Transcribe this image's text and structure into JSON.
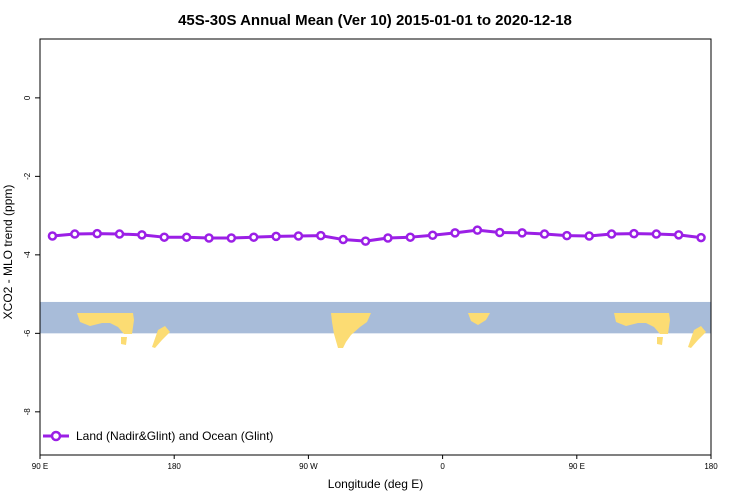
{
  "chart_data": {
    "type": "line",
    "title": "45S-30S Annual Mean (Ver 10)   2015-01-01 to 2020-12-18",
    "xlabel": "Longitude (deg E)",
    "ylabel": "XCO2 - MLO trend (ppm)",
    "xlim": [
      -90,
      180
    ],
    "ylim": [
      -9.1,
      1.5
    ],
    "x_ticks": [
      {
        "value": -90,
        "label": "90 E"
      },
      {
        "value": -36,
        "label": "180"
      },
      {
        "value": 18,
        "label": "90 W"
      },
      {
        "value": 72,
        "label": "0"
      },
      {
        "value": 126,
        "label": "90 E"
      },
      {
        "value": 180,
        "label": "180"
      }
    ],
    "y_ticks": [
      {
        "value": 0,
        "label": "0"
      },
      {
        "value": -2,
        "label": "-2"
      },
      {
        "value": -4,
        "label": "-4"
      },
      {
        "value": -6,
        "label": "-6"
      },
      {
        "value": -8,
        "label": "-8"
      }
    ],
    "grid": false,
    "legend_position": "bottom-left",
    "background_map_band": {
      "y_top": -5.2,
      "y_bottom": -6.0,
      "ocean_color": "#a8bcd9",
      "land_color": "#fcdc73"
    },
    "series": [
      {
        "name": "Land (Nadir&Glint) and Ocean (Glint)",
        "color": "#9b1fe6",
        "x": [
          -85,
          -76,
          -67,
          -58,
          -49,
          -40,
          -31,
          -22,
          -13,
          -4,
          5,
          14,
          23,
          32,
          41,
          50,
          59,
          68,
          77,
          86,
          95,
          104,
          113,
          122,
          131,
          140,
          149,
          158,
          167,
          176
        ],
        "y": [
          -3.52,
          -3.47,
          -3.46,
          -3.47,
          -3.49,
          -3.55,
          -3.55,
          -3.57,
          -3.57,
          -3.55,
          -3.53,
          -3.52,
          -3.51,
          -3.61,
          -3.65,
          -3.57,
          -3.55,
          -3.5,
          -3.44,
          -3.37,
          -3.43,
          -3.44,
          -3.47,
          -3.51,
          -3.52,
          -3.47,
          -3.46,
          -3.47,
          -3.49,
          -3.56
        ]
      }
    ]
  }
}
